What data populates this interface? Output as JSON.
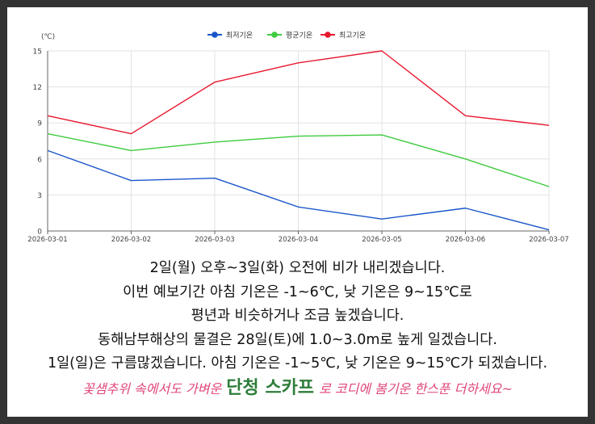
{
  "chart_data": {
    "type": "line",
    "ylabel": "(℃)",
    "ylim": [
      0,
      15
    ],
    "y_ticks": [
      "0",
      "3",
      "6",
      "9",
      "12",
      "15"
    ],
    "categories": [
      "2026-03-01",
      "2026-03-02",
      "2026-03-03",
      "2026-03-04",
      "2026-03-05",
      "2026-03-06",
      "2026-03-07"
    ],
    "grid": true,
    "legend_position": "top",
    "series": [
      {
        "name": "최저기온",
        "color": "#1a56c9",
        "values": [
          6.7,
          4.2,
          4.4,
          2.0,
          1.0,
          1.9,
          0.1
        ]
      },
      {
        "name": "평균기온",
        "color": "#3ecb3e",
        "values": [
          8.1,
          6.7,
          7.4,
          7.9,
          8.0,
          6.0,
          3.7
        ]
      },
      {
        "name": "최고기온",
        "color": "#e8182f",
        "values": [
          9.6,
          8.1,
          12.4,
          14.0,
          15.0,
          9.6,
          8.8
        ]
      }
    ]
  },
  "text": {
    "lines": [
      "2일(월) 오후~3일(화) 오전에 비가 내리겠습니다.",
      "이번 예보기간 아침 기온은 -1~6℃, 낮 기온은 9~15℃로",
      "평년과 비슷하거나 조금 높겠습니다.",
      "동해남부해상의 물결은 28일(토)에 1.0~3.0m로 높게 일겠습니다.",
      "1일(일)은 구름많겠습니다. 아침 기온은 -1~5℃, 낮 기온은 9~15℃가 되겠습니다."
    ],
    "promo_before": "꽃샘추위 속에서도 가벼운",
    "promo_emphasis": "단청 스카프",
    "promo_after": "로 코디에 봄기운 한스푼 더하세요~"
  },
  "colors": {
    "frame": "#333333",
    "promo_text": "#e0457a",
    "promo_emphasis": "#2e7d3a"
  }
}
